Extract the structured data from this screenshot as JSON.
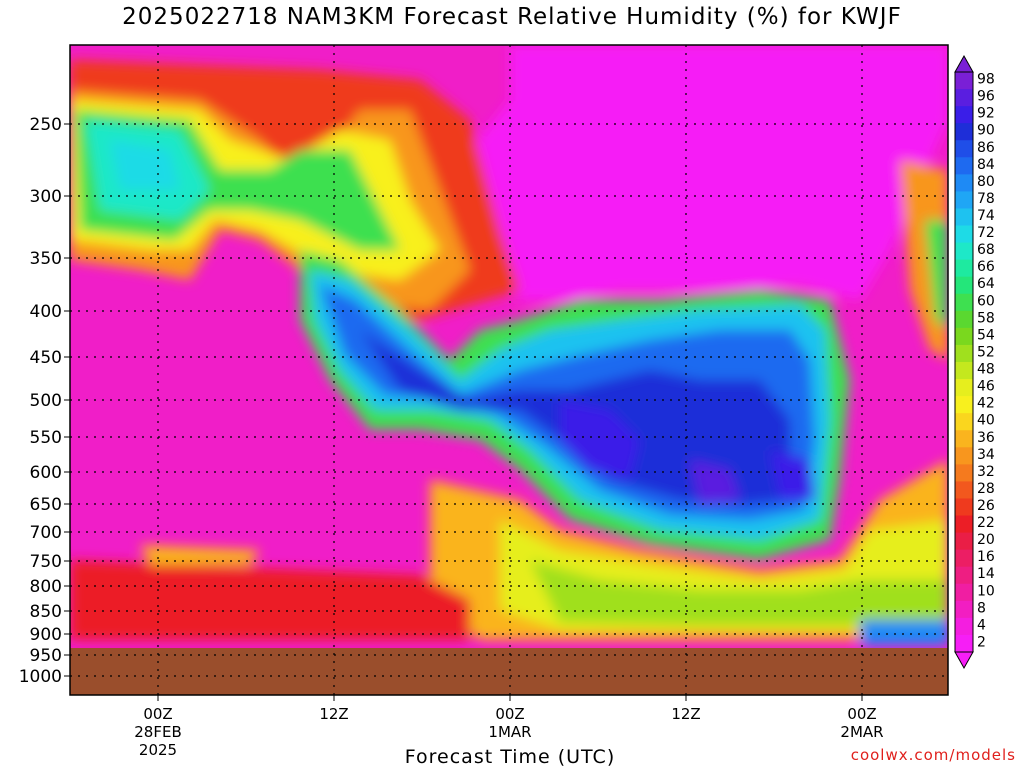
{
  "chart_data": {
    "type": "heatmap",
    "title": "2025022718 NAM3KM Forecast Relative Humidity (%) for KWJF",
    "xlabel": "Forecast Time (UTC)",
    "ylabel": "",
    "y_ticks": [
      "250",
      "300",
      "350",
      "400",
      "450",
      "500",
      "550",
      "600",
      "650",
      "700",
      "750",
      "800",
      "850",
      "900",
      "950",
      "1000"
    ],
    "x_ticks": [
      {
        "line1": "00Z",
        "line2": "28FEB",
        "line3": "2025"
      },
      {
        "line1": "12Z",
        "line2": "",
        "line3": ""
      },
      {
        "line1": "00Z",
        "line2": "1MAR",
        "line3": ""
      },
      {
        "line1": "12Z",
        "line2": "",
        "line3": ""
      },
      {
        "line1": "00Z",
        "line2": "2MAR",
        "line3": ""
      }
    ],
    "colorbar_labels": [
      "98",
      "96",
      "92",
      "90",
      "86",
      "84",
      "80",
      "78",
      "74",
      "72",
      "68",
      "66",
      "64",
      "60",
      "58",
      "54",
      "52",
      "48",
      "46",
      "42",
      "40",
      "36",
      "34",
      "32",
      "28",
      "26",
      "22",
      "20",
      "16",
      "14",
      "10",
      "8",
      "4",
      "2"
    ],
    "colorbar_colors": [
      "#7a1fd6",
      "#5a1ee0",
      "#3a1ee8",
      "#1e2ed8",
      "#1f4ee8",
      "#1e6af0",
      "#1e8af5",
      "#1fa6f5",
      "#1ec2f0",
      "#1edbe6",
      "#1ee8c8",
      "#1eeaa0",
      "#24e67a",
      "#3ee050",
      "#5ad830",
      "#7ad81e",
      "#a0e01e",
      "#c4e81e",
      "#e6ee1e",
      "#f8f01e",
      "#fad61e",
      "#fab41e",
      "#f8961e",
      "#f57a1e",
      "#f2581e",
      "#ef3a1e",
      "#ec1e26",
      "#ea1e46",
      "#ec1e64",
      "#ee1e82",
      "#f01ea2",
      "#f21ec2",
      "#f41ee0",
      "#f61ef6"
    ],
    "terrain_color": "#9a4e2c",
    "grid": "dotted"
  },
  "page": {
    "credit": "coolwx.com/models"
  }
}
